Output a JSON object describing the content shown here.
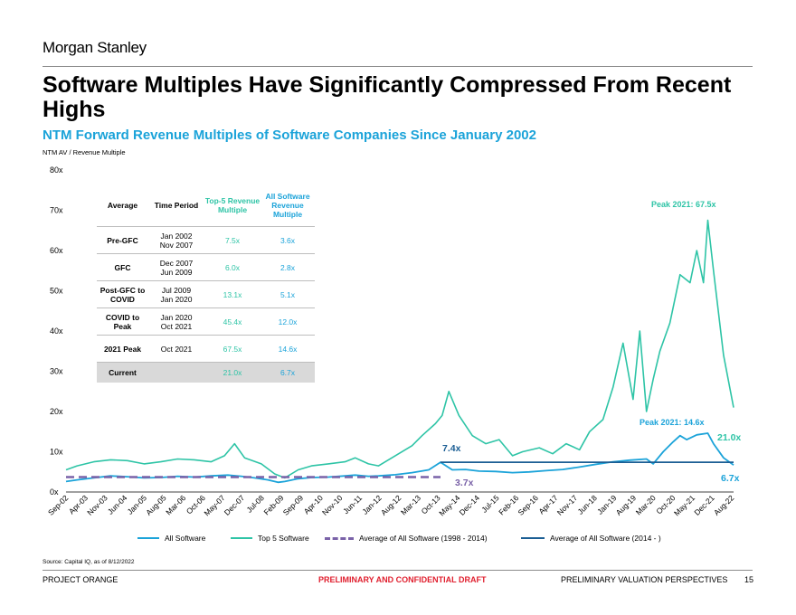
{
  "header": {
    "brand": "Morgan Stanley"
  },
  "title": "Software Multiples Have Significantly Compressed From Recent Highs",
  "subtitle": "NTM Forward Revenue Multiples of Software Companies Since January 2002",
  "y_axis_caption": "NTM AV / Revenue Multiple",
  "table": {
    "headers": [
      "Average",
      "Time Period",
      "Top-5 Revenue Multiple",
      "All Software Revenue Multiple"
    ],
    "rows": [
      {
        "label": "Pre-GFC",
        "period_1": "Jan 2002",
        "period_2": "Nov 2007",
        "top5": "7.5x",
        "all": "3.6x"
      },
      {
        "label": "GFC",
        "period_1": "Dec 2007",
        "period_2": "Jun 2009",
        "top5": "6.0x",
        "all": "2.8x"
      },
      {
        "label": "Post-GFC to COVID",
        "period_1": "Jul 2009",
        "period_2": "Jan 2020",
        "top5": "13.1x",
        "all": "5.1x"
      },
      {
        "label": "COVID to Peak",
        "period_1": "Jan 2020",
        "period_2": "Oct 2021",
        "top5": "45.4x",
        "all": "12.0x"
      },
      {
        "label": "2021 Peak",
        "period_1": "Oct 2021",
        "period_2": "",
        "top5": "67.5x",
        "all": "14.6x"
      },
      {
        "label": "Current",
        "period_1": "",
        "period_2": "",
        "top5": "21.0x",
        "all": "6.7x"
      }
    ]
  },
  "chart_data": {
    "type": "line",
    "ylim": [
      0,
      80
    ],
    "y_ticks": [
      "0x",
      "10x",
      "20x",
      "30x",
      "40x",
      "50x",
      "60x",
      "70x",
      "80x"
    ],
    "x_start": 2002.67,
    "x_end": 2022.6,
    "x_ticks": [
      "Sep-02",
      "Apr-03",
      "Nov-03",
      "Jun-04",
      "Jan-05",
      "Aug-05",
      "Mar-06",
      "Oct-06",
      "May-07",
      "Dec-07",
      "Jul-08",
      "Feb-09",
      "Sep-09",
      "Apr-10",
      "Nov-10",
      "Jun-11",
      "Jan-12",
      "Aug-12",
      "Mar-13",
      "Oct-13",
      "May-14",
      "Dec-14",
      "Jul-15",
      "Feb-16",
      "Sep-16",
      "Apr-17",
      "Nov-17",
      "Jun-18",
      "Jan-19",
      "Aug-19",
      "Mar-20",
      "Oct-20",
      "May-21",
      "Dec-21",
      "Aug-22"
    ],
    "series": [
      {
        "name": "All Software",
        "color": "#1ba3d9",
        "x": [
          2002.67,
          2003.0,
          2003.5,
          2004.0,
          2004.5,
          2005.0,
          2005.5,
          2006.0,
          2006.5,
          2007.0,
          2007.5,
          2007.9,
          2008.3,
          2008.7,
          2009.0,
          2009.2,
          2009.6,
          2010.0,
          2010.5,
          2011.0,
          2011.3,
          2011.7,
          2012.0,
          2012.5,
          2013.0,
          2013.5,
          2013.85,
          2014.2,
          2014.6,
          2015.0,
          2015.5,
          2016.0,
          2016.5,
          2017.0,
          2017.5,
          2018.0,
          2018.5,
          2019.0,
          2019.5,
          2020.0,
          2020.2,
          2020.5,
          2020.8,
          2021.0,
          2021.2,
          2021.5,
          2021.83,
          2022.0,
          2022.3,
          2022.6
        ],
        "y": [
          2.6,
          3.0,
          3.5,
          4.0,
          3.8,
          3.5,
          3.6,
          3.9,
          3.7,
          4.0,
          4.2,
          3.9,
          3.5,
          3.0,
          2.4,
          2.6,
          3.3,
          3.6,
          3.7,
          4.0,
          4.2,
          3.9,
          4.0,
          4.3,
          4.8,
          5.5,
          7.4,
          5.5,
          5.6,
          5.2,
          5.1,
          4.8,
          5.0,
          5.3,
          5.6,
          6.2,
          6.9,
          7.5,
          7.9,
          8.2,
          7.0,
          10.0,
          12.5,
          14.0,
          13.0,
          14.2,
          14.6,
          12.0,
          8.5,
          6.7
        ]
      },
      {
        "name": "Top 5 Software",
        "color": "#2ec4a6",
        "x": [
          2002.67,
          2003.0,
          2003.5,
          2004.0,
          2004.5,
          2005.0,
          2005.5,
          2006.0,
          2006.5,
          2007.0,
          2007.4,
          2007.7,
          2008.0,
          2008.5,
          2008.9,
          2009.2,
          2009.6,
          2010.0,
          2010.5,
          2011.0,
          2011.3,
          2011.7,
          2012.0,
          2012.5,
          2013.0,
          2013.3,
          2013.7,
          2013.9,
          2014.1,
          2014.4,
          2014.8,
          2015.2,
          2015.6,
          2016.0,
          2016.3,
          2016.8,
          2017.2,
          2017.6,
          2018.0,
          2018.3,
          2018.7,
          2019.0,
          2019.3,
          2019.6,
          2019.8,
          2020.0,
          2020.2,
          2020.4,
          2020.7,
          2021.0,
          2021.3,
          2021.5,
          2021.7,
          2021.83,
          2022.0,
          2022.3,
          2022.6
        ],
        "y": [
          5.5,
          6.5,
          7.5,
          8.0,
          7.8,
          7.0,
          7.5,
          8.2,
          8.0,
          7.5,
          9.0,
          12.0,
          8.5,
          7.0,
          4.5,
          3.5,
          5.5,
          6.5,
          7.0,
          7.5,
          8.5,
          7.0,
          6.5,
          9.0,
          11.5,
          14.0,
          17.0,
          19.0,
          25.0,
          19.0,
          14.0,
          12.0,
          13.0,
          9.0,
          10.0,
          11.0,
          9.5,
          12.0,
          10.5,
          15.0,
          18.0,
          26.0,
          37.0,
          23.0,
          40.0,
          20.0,
          28.0,
          35.0,
          42.0,
          54.0,
          52.0,
          60.0,
          52.0,
          67.5,
          55.0,
          34.0,
          21.0
        ]
      },
      {
        "name": "Average of All Software (1998 - 2014)",
        "color": "#7a62a8",
        "dash": true,
        "x": [
          2002.67,
          2013.85
        ],
        "y": [
          3.7,
          3.7
        ]
      },
      {
        "name": "Average of All Software (2014 - )",
        "color": "#1b5e94",
        "x": [
          2013.85,
          2022.6
        ],
        "y": [
          7.4,
          7.4
        ]
      }
    ],
    "annotations": [
      {
        "text": "Peak 2021: 67.5x",
        "color": "#2ec4a6"
      },
      {
        "text": "Peak 2021: 14.6x",
        "color": "#1ba3d9"
      },
      {
        "text": "21.0x",
        "color": "#2ec4a6"
      },
      {
        "text": "6.7x",
        "color": "#1ba3d9"
      },
      {
        "text": "7.4x",
        "color": "#1b5e94"
      },
      {
        "text": "3.7x",
        "color": "#7a62a8"
      }
    ]
  },
  "legend": [
    "All Software",
    "Top 5 Software",
    "Average of All Software (1998 - 2014)",
    "Average of All Software (2014 - )"
  ],
  "source": "Source: Capital IQ, as of 8/12/2022",
  "footer": {
    "left": "PROJECT ORANGE",
    "middle": "PRELIMINARY AND CONFIDENTIAL DRAFT",
    "right": "PRELIMINARY VALUATION PERSPECTIVES",
    "page": "15"
  }
}
